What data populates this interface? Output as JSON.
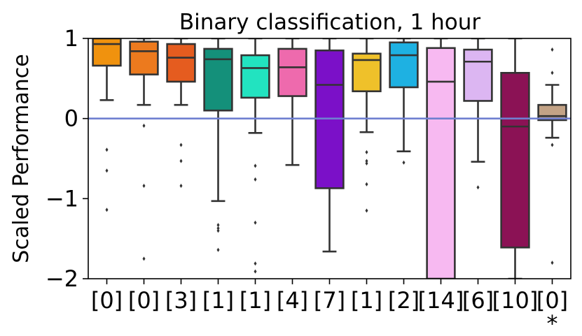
{
  "chart_data": {
    "type": "box",
    "title": "Binary classification, 1 hour",
    "xlabel": "",
    "ylabel": "Scaled Performance",
    "ylim": [
      -2,
      1
    ],
    "yticks": [
      -2,
      -1,
      0,
      1
    ],
    "ytick_labels": [
      "−2",
      "−1",
      "0",
      "1"
    ],
    "reference_line": {
      "y": 0,
      "color": "#6f7fd0"
    },
    "footnote": "*",
    "categories": [
      "[0]",
      "[0]",
      "[3]",
      "[1]",
      "[1]",
      "[4]",
      "[7]",
      "[1]",
      "[2]",
      "[14]",
      "[6]",
      "[10]",
      "[0]"
    ],
    "boxes": [
      {
        "label": "[0]",
        "color": "#f0920e",
        "q1": 0.66,
        "median": 0.93,
        "q3": 1.0,
        "whisker_low": 0.23,
        "whisker_high": 1.0,
        "outliers": [
          -0.39,
          -0.65,
          -1.14
        ]
      },
      {
        "label": "[0]",
        "color": "#ec7a1e",
        "q1": 0.55,
        "median": 0.84,
        "q3": 0.96,
        "whisker_low": 0.17,
        "whisker_high": 1.0,
        "outliers": [
          -0.09,
          -0.84,
          -1.75
        ]
      },
      {
        "label": "[3]",
        "color": "#e55c1f",
        "q1": 0.46,
        "median": 0.76,
        "q3": 0.93,
        "whisker_low": 0.17,
        "whisker_high": 1.0,
        "outliers": [
          -0.33,
          -0.53,
          -0.84
        ]
      },
      {
        "label": "[1]",
        "color": "#14907a",
        "q1": 0.1,
        "median": 0.74,
        "q3": 0.87,
        "whisker_low": -1.03,
        "whisker_high": 1.0,
        "outliers": [
          -1.33,
          -1.37,
          -1.4,
          -1.64
        ]
      },
      {
        "label": "[1]",
        "color": "#22e3c0",
        "q1": 0.26,
        "median": 0.63,
        "q3": 0.79,
        "whisker_low": -0.18,
        "whisker_high": 1.0,
        "outliers": [
          -0.59,
          -0.76,
          -1.3,
          -1.81,
          -1.91
        ]
      },
      {
        "label": "[4]",
        "color": "#ee6aad",
        "q1": 0.28,
        "median": 0.64,
        "q3": 0.87,
        "whisker_low": -0.58,
        "whisker_high": 1.0,
        "outliers": []
      },
      {
        "label": "[7]",
        "color": "#7b10c8",
        "q1": -0.87,
        "median": 0.42,
        "q3": 0.85,
        "whisker_low": -1.66,
        "whisker_high": 1.0,
        "outliers": []
      },
      {
        "label": "[1]",
        "color": "#efc12a",
        "q1": 0.34,
        "median": 0.73,
        "q3": 0.81,
        "whisker_low": -0.17,
        "whisker_high": 1.0,
        "outliers": [
          -0.42,
          -0.53,
          -0.56,
          -0.82,
          -1.15
        ]
      },
      {
        "label": "[2]",
        "color": "#1eb1e2",
        "q1": 0.39,
        "median": 0.79,
        "q3": 0.95,
        "whisker_low": -0.41,
        "whisker_high": 1.0,
        "outliers": [
          -0.55
        ]
      },
      {
        "label": "[14]",
        "color": "#f7b9f1",
        "q1": -2.0,
        "median": 0.46,
        "q3": 0.88,
        "whisker_low": -2.0,
        "whisker_high": 1.0,
        "outliers": []
      },
      {
        "label": "[6]",
        "color": "#dcb6f2",
        "q1": 0.22,
        "median": 0.71,
        "q3": 0.86,
        "whisker_low": -0.54,
        "whisker_high": 1.0,
        "outliers": [
          -0.86
        ]
      },
      {
        "label": "[10]",
        "color": "#8b1255",
        "q1": -1.61,
        "median": -0.1,
        "q3": 0.57,
        "whisker_low": -2.0,
        "whisker_high": 1.0,
        "outliers": []
      },
      {
        "label": "[0]",
        "color": "#c3a386",
        "q1": -0.02,
        "median": 0.03,
        "q3": 0.17,
        "whisker_low": -0.24,
        "whisker_high": 0.42,
        "outliers": [
          0.86,
          0.57,
          -0.33,
          -1.8
        ]
      }
    ]
  }
}
